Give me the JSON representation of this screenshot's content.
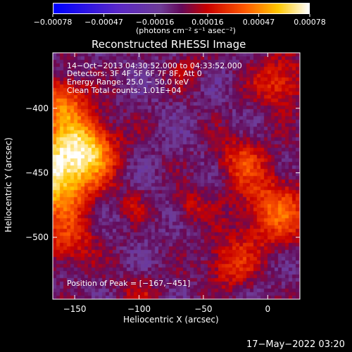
{
  "chart_data": {
    "type": "heatmap",
    "title": "Reconstructed RHESSI Image",
    "colorbar": {
      "ticks": [
        "-0.00078",
        "-0.00047",
        "-0.00016",
        "0.00016",
        "0.00047",
        "0.00078"
      ],
      "range": [
        -0.00078,
        0.00078
      ],
      "unit": "(photons cm⁻² s⁻¹ asec⁻²)"
    },
    "xlabel": "Heliocentric X (arcsec)",
    "ylabel": "Heliocentric Y (arcsec)",
    "xlim": [
      -167,
      25
    ],
    "ylim": [
      -548,
      -357
    ],
    "xticks": [
      "−150",
      "−100",
      "−50",
      "0"
    ],
    "xtick_values": [
      -150,
      -100,
      -50,
      0
    ],
    "yticks": [
      "−400",
      "−450",
      "−500"
    ],
    "ytick_values": [
      -400,
      -450,
      -500
    ],
    "annotations": {
      "time": "14−Oct−2013 04:30:52.000 to 04:33:52.000",
      "detectors": "Detectors: 3F 4F 5F 6F 7F 8F, Att 0",
      "energy": "Energy Range: 25.0 − 50.0 keV",
      "clean": "Clean    Total counts: 1.01E+04",
      "peak": "Position of Peak = [−167,−451]"
    },
    "sources": [
      {
        "x": -167,
        "y": -451,
        "sigma": 22,
        "amp": 0.00078
      },
      {
        "x": -140,
        "y": -430,
        "sigma": 16,
        "amp": 0.00052
      },
      {
        "x": -160,
        "y": -395,
        "sigma": 14,
        "amp": 0.00045
      },
      {
        "x": -155,
        "y": -505,
        "sigma": 14,
        "amp": 0.0003
      },
      {
        "x": 5,
        "y": -480,
        "sigma": 20,
        "amp": 0.0004
      },
      {
        "x": -20,
        "y": -440,
        "sigma": 14,
        "amp": 0.0003
      },
      {
        "x": 10,
        "y": -380,
        "sigma": 14,
        "amp": 0.00035
      },
      {
        "x": -30,
        "y": -520,
        "sigma": 14,
        "amp": 0.0003
      },
      {
        "x": -60,
        "y": -475,
        "sigma": 10,
        "amp": 0.0002
      },
      {
        "x": -100,
        "y": -545,
        "sigma": 12,
        "amp": 0.00018
      },
      {
        "x": -60,
        "y": -370,
        "sigma": 10,
        "amp": 0.00015
      },
      {
        "x": -105,
        "y": -475,
        "sigma": 8,
        "amp": 0.00014
      }
    ]
  },
  "footer": {
    "timestamp": "17−May−2022 03:20"
  }
}
